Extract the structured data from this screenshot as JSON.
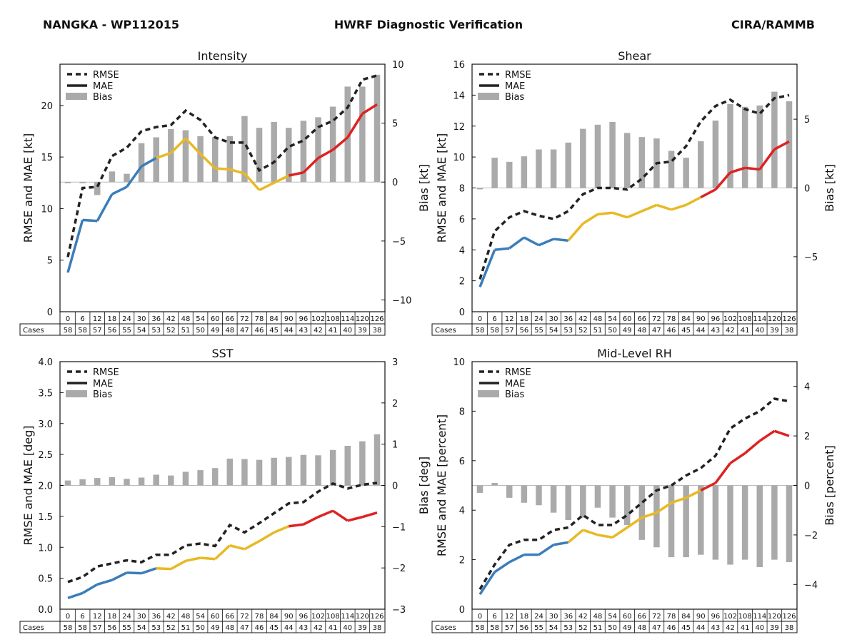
{
  "header": {
    "left": "NANGKA - WP112015",
    "center": "HWRF Diagnostic Verification",
    "right": "CIRA/RAMMB"
  },
  "colors": {
    "early": "#3a7dba",
    "mid": "#e8b923",
    "late": "#dd2222",
    "bias": "#aaaaaa",
    "rmse": "#222222"
  },
  "legend": [
    "RMSE",
    "MAE",
    "Bias"
  ],
  "hours": [
    "0",
    "6",
    "12",
    "18",
    "24",
    "30",
    "36",
    "42",
    "48",
    "54",
    "60",
    "66",
    "72",
    "78",
    "84",
    "90",
    "96",
    "102",
    "108",
    "114",
    "120",
    "126"
  ],
  "cases_label": "Cases",
  "cases": [
    "58",
    "58",
    "57",
    "56",
    "55",
    "54",
    "53",
    "52",
    "51",
    "50",
    "49",
    "48",
    "47",
    "46",
    "45",
    "44",
    "43",
    "42",
    "41",
    "40",
    "39",
    "38"
  ],
  "chart_data": [
    {
      "type": "line",
      "title": "Intensity",
      "ylabel": "RMSE and MAE [kt]",
      "y2label": "Bias [kt]",
      "ylim": [
        0,
        24
      ],
      "yticks": [
        0,
        5,
        10,
        15,
        20
      ],
      "ytick_labels": [
        "0",
        "5",
        "10",
        "15",
        "20"
      ],
      "y2lim": [
        -11,
        10
      ],
      "y2ticks": [
        -10,
        -5,
        0,
        5,
        10
      ],
      "y2tick_labels": [
        "−10",
        "−5",
        "0",
        "5",
        "10"
      ],
      "rmse": [
        5.3,
        12.0,
        12.1,
        15.1,
        15.9,
        17.5,
        17.9,
        18.1,
        19.5,
        18.6,
        16.9,
        16.4,
        16.4,
        13.7,
        14.5,
        16.0,
        16.6,
        17.9,
        18.5,
        19.8,
        22.5,
        22.9
      ],
      "mae": [
        3.8,
        8.9,
        8.8,
        11.4,
        12.1,
        14.1,
        14.9,
        15.4,
        16.8,
        15.3,
        13.9,
        13.8,
        13.4,
        11.8,
        12.5,
        13.2,
        13.5,
        14.9,
        15.7,
        16.9,
        19.2,
        20.1
      ],
      "bias": [
        -0.1,
        -0.1,
        -1.1,
        0.9,
        0.7,
        3.3,
        3.8,
        4.5,
        4.4,
        3.9,
        3.8,
        3.9,
        5.6,
        4.6,
        5.1,
        4.6,
        5.2,
        5.5,
        6.4,
        8.1,
        8.1,
        9.1
      ]
    },
    {
      "type": "line",
      "title": "Shear",
      "ylabel": "RMSE and MAE [kt]",
      "y2label": "Bias [kt]",
      "ylim": [
        0,
        16
      ],
      "yticks": [
        0,
        2,
        4,
        6,
        8,
        10,
        12,
        14,
        16
      ],
      "ytick_labels": [
        "0",
        "2",
        "4",
        "6",
        "8",
        "10",
        "12",
        "14",
        "16"
      ],
      "y2lim": [
        -9,
        9
      ],
      "y2ticks": [
        -5,
        0,
        5
      ],
      "y2tick_labels": [
        "−5",
        "0",
        "5"
      ],
      "rmse": [
        2.1,
        5.2,
        6.1,
        6.5,
        6.2,
        6.0,
        6.5,
        7.6,
        8.0,
        8.0,
        7.9,
        8.6,
        9.6,
        9.7,
        10.7,
        12.3,
        13.3,
        13.7,
        13.1,
        12.8,
        13.8,
        14.0
      ],
      "mae": [
        1.6,
        4.0,
        4.1,
        4.8,
        4.3,
        4.7,
        4.6,
        5.7,
        6.3,
        6.4,
        6.1,
        6.5,
        6.9,
        6.6,
        6.9,
        7.4,
        7.9,
        9.0,
        9.3,
        9.2,
        10.5,
        11.0
      ],
      "bias": [
        -0.1,
        2.2,
        1.9,
        2.3,
        2.8,
        2.8,
        3.3,
        4.3,
        4.6,
        4.8,
        4.0,
        3.7,
        3.6,
        2.7,
        2.2,
        3.4,
        4.9,
        6.1,
        5.9,
        6.0,
        7.0,
        6.3
      ]
    },
    {
      "type": "line",
      "title": "SST",
      "ylabel": "RMSE and MAE [deg]",
      "y2label": "Bias [deg]",
      "ylim": [
        0,
        4
      ],
      "yticks": [
        0,
        0.5,
        1.0,
        1.5,
        2.0,
        2.5,
        3.0,
        3.5,
        4.0
      ],
      "ytick_labels": [
        "0.0",
        "0.5",
        "1.0",
        "1.5",
        "2.0",
        "2.5",
        "3.0",
        "3.5",
        "4.0"
      ],
      "y2lim": [
        -3,
        3
      ],
      "y2ticks": [
        -3,
        -2,
        -1,
        0,
        1,
        2,
        3
      ],
      "y2tick_labels": [
        "−3",
        "−2",
        "−1",
        "0",
        "1",
        "2",
        "3"
      ],
      "rmse": [
        0.44,
        0.52,
        0.69,
        0.74,
        0.79,
        0.76,
        0.88,
        0.88,
        1.03,
        1.06,
        1.02,
        1.36,
        1.24,
        1.39,
        1.55,
        1.71,
        1.73,
        1.9,
        2.03,
        1.95,
        2.01,
        2.04
      ],
      "mae": [
        0.18,
        0.26,
        0.4,
        0.47,
        0.59,
        0.58,
        0.66,
        0.65,
        0.78,
        0.83,
        0.81,
        1.03,
        0.97,
        1.1,
        1.24,
        1.34,
        1.37,
        1.49,
        1.59,
        1.43,
        1.49,
        1.56
      ],
      "bias": [
        0.12,
        0.15,
        0.18,
        0.2,
        0.16,
        0.19,
        0.26,
        0.24,
        0.33,
        0.37,
        0.42,
        0.65,
        0.64,
        0.62,
        0.67,
        0.69,
        0.74,
        0.73,
        0.86,
        0.96,
        1.07,
        1.24
      ]
    },
    {
      "type": "line",
      "title": "Mid-Level RH",
      "ylabel": "RMSE and MAE [percent]",
      "y2label": "Bias [percent]",
      "ylim": [
        0,
        10
      ],
      "yticks": [
        0,
        2,
        4,
        6,
        8,
        10
      ],
      "ytick_labels": [
        "0",
        "2",
        "4",
        "6",
        "8",
        "10"
      ],
      "y2lim": [
        -5,
        5
      ],
      "y2ticks": [
        -4,
        -2,
        0,
        2,
        4
      ],
      "y2tick_labels": [
        "−4",
        "−2",
        "0",
        "2",
        "4"
      ],
      "rmse": [
        0.8,
        1.8,
        2.6,
        2.8,
        2.8,
        3.2,
        3.3,
        3.8,
        3.4,
        3.4,
        3.8,
        4.3,
        4.8,
        5.0,
        5.4,
        5.7,
        6.2,
        7.3,
        7.7,
        8.0,
        8.5,
        8.4
      ],
      "mae": [
        0.6,
        1.5,
        1.9,
        2.2,
        2.2,
        2.6,
        2.7,
        3.2,
        3.0,
        2.9,
        3.3,
        3.7,
        3.9,
        4.3,
        4.5,
        4.8,
        5.1,
        5.9,
        6.3,
        6.8,
        7.2,
        7.0
      ],
      "bias": [
        -0.3,
        0.1,
        -0.5,
        -0.7,
        -0.8,
        -1.1,
        -1.4,
        -1.3,
        -0.9,
        -1.3,
        -1.6,
        -2.2,
        -2.5,
        -2.9,
        -2.9,
        -2.8,
        -3.0,
        -3.2,
        -3.0,
        -3.3,
        -3.0,
        -3.1
      ]
    }
  ]
}
